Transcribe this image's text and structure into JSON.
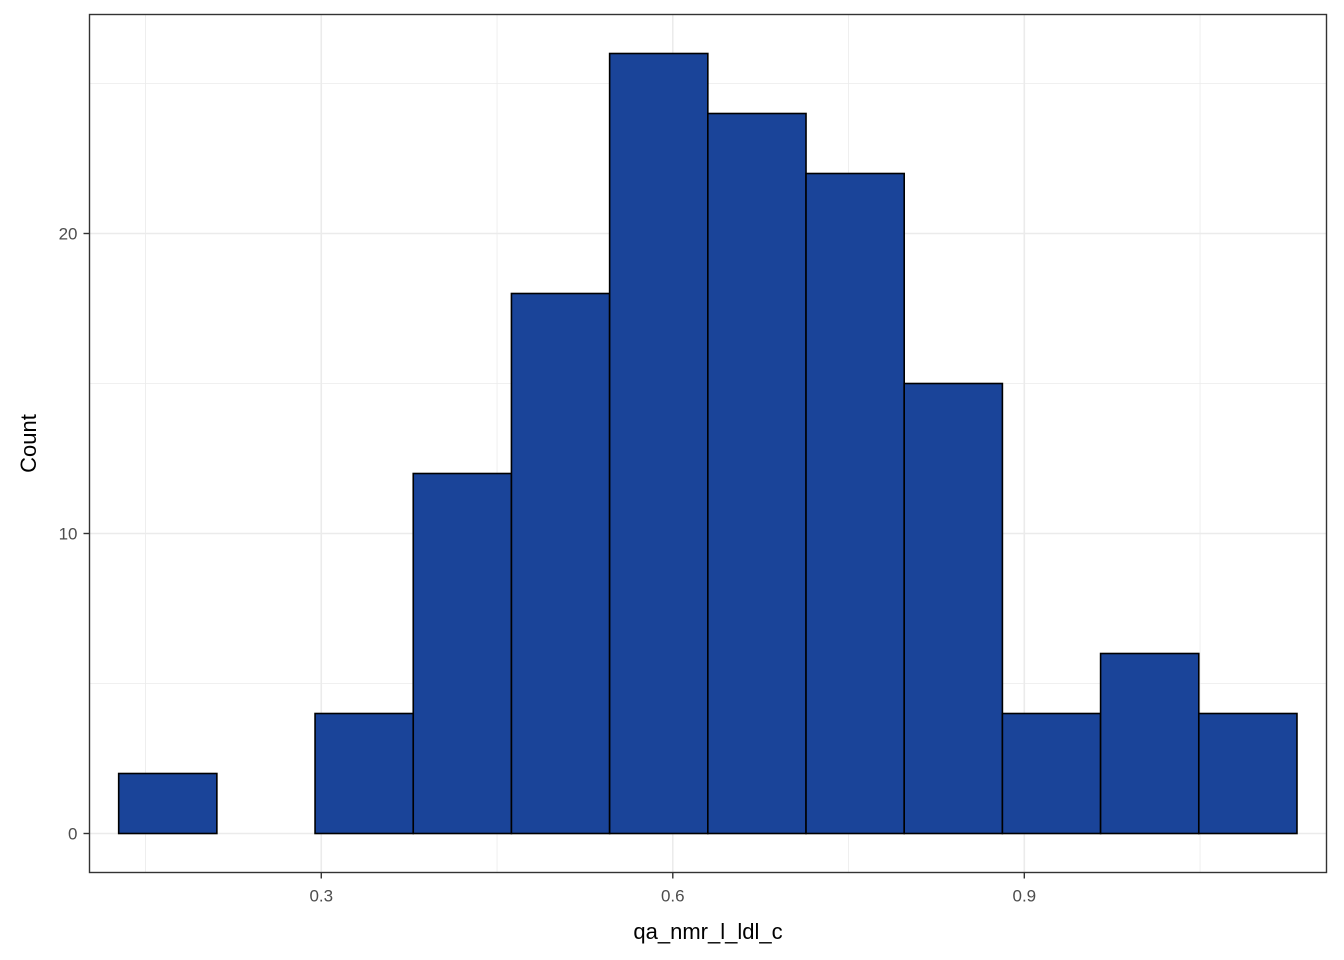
{
  "chart_data": {
    "type": "bar",
    "subtype": "histogram",
    "xlabel": "qa_nmr_l_ldl_c",
    "ylabel": "Count",
    "bins": [
      {
        "x0": 0.1271,
        "x1": 0.2109,
        "count": 2
      },
      {
        "x0": 0.2109,
        "x1": 0.2947,
        "count": 0
      },
      {
        "x0": 0.2947,
        "x1": 0.3785,
        "count": 4
      },
      {
        "x0": 0.3785,
        "x1": 0.4623,
        "count": 12
      },
      {
        "x0": 0.4623,
        "x1": 0.5461,
        "count": 18
      },
      {
        "x0": 0.5461,
        "x1": 0.6299,
        "count": 26
      },
      {
        "x0": 0.6299,
        "x1": 0.7137,
        "count": 24
      },
      {
        "x0": 0.7137,
        "x1": 0.7975,
        "count": 22
      },
      {
        "x0": 0.7975,
        "x1": 0.8813,
        "count": 15
      },
      {
        "x0": 0.8813,
        "x1": 0.9651,
        "count": 4
      },
      {
        "x0": 0.9651,
        "x1": 1.0489,
        "count": 6
      },
      {
        "x0": 1.0489,
        "x1": 1.1327,
        "count": 4
      }
    ],
    "xlim": [
      0.1022,
      1.1579
    ],
    "ylim": [
      -1.3,
      27.3
    ],
    "x_ticks": [
      0.3,
      0.6,
      0.9
    ],
    "x_tick_labels": [
      "0.3",
      "0.6",
      "0.9"
    ],
    "y_ticks": [
      0,
      10,
      20
    ],
    "y_tick_labels": [
      "0",
      "10",
      "20"
    ],
    "x_minor_ticks": [
      0.15,
      0.45,
      0.75,
      1.05
    ],
    "y_minor_ticks": [
      5,
      15,
      25
    ],
    "grid": true,
    "bar_fill": "#1a4499",
    "bar_stroke": "#000000",
    "panel_border": "#333333",
    "grid_color": "#ebebeb",
    "background": "#ffffff"
  }
}
